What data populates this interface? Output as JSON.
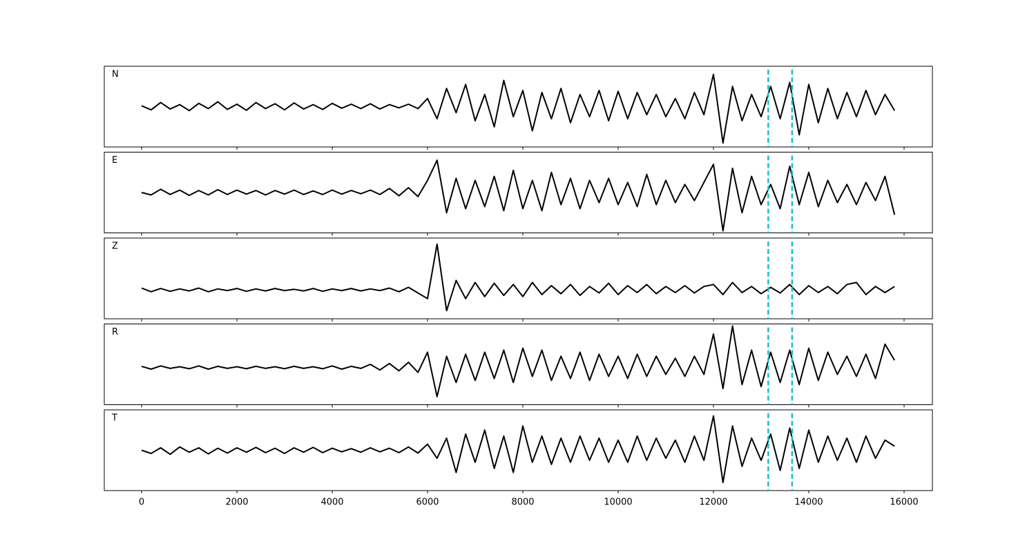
{
  "chart_data": {
    "type": "line",
    "layout": "stacked",
    "x": [
      0,
      200,
      400,
      600,
      800,
      1000,
      1200,
      1400,
      1600,
      1800,
      2000,
      2200,
      2400,
      2600,
      2800,
      3000,
      3200,
      3400,
      3600,
      3800,
      4000,
      4200,
      4400,
      4600,
      4800,
      5000,
      5200,
      5400,
      5600,
      5800,
      6000,
      6200,
      6400,
      6600,
      6800,
      7000,
      7200,
      7400,
      7600,
      7800,
      8000,
      8200,
      8400,
      8600,
      8800,
      9000,
      9200,
      9400,
      9600,
      9800,
      10000,
      10200,
      10400,
      10600,
      10800,
      11000,
      11200,
      11400,
      11600,
      11800,
      12000,
      12200,
      12400,
      12600,
      12800,
      13000,
      13200,
      13400,
      13600,
      13800,
      14000,
      14200,
      14400,
      14600,
      14800,
      15000,
      15200,
      15400,
      15600,
      15800
    ],
    "series": [
      {
        "name": "N",
        "color": "#000000",
        "values": [
          0.02,
          -0.08,
          0.1,
          -0.06,
          0.05,
          -0.1,
          0.08,
          -0.05,
          0.12,
          -0.07,
          0.06,
          -0.09,
          0.1,
          -0.05,
          0.07,
          -0.08,
          0.09,
          -0.06,
          0.05,
          -0.07,
          0.08,
          -0.04,
          0.06,
          -0.05,
          0.07,
          -0.06,
          0.05,
          -0.03,
          0.06,
          -0.05,
          0.2,
          -0.3,
          0.45,
          -0.15,
          0.55,
          -0.35,
          0.3,
          -0.5,
          0.65,
          -0.25,
          0.4,
          -0.6,
          0.35,
          -0.3,
          0.45,
          -0.4,
          0.3,
          -0.25,
          0.4,
          -0.35,
          0.38,
          -0.3,
          0.35,
          -0.2,
          0.3,
          -0.25,
          0.2,
          -0.3,
          0.35,
          -0.2,
          0.8,
          -0.9,
          0.5,
          -0.35,
          0.3,
          -0.25,
          0.5,
          -0.3,
          0.6,
          -0.7,
          0.55,
          -0.4,
          0.45,
          -0.3,
          0.35,
          -0.25,
          0.4,
          -0.2,
          0.3,
          -0.1
        ]
      },
      {
        "name": "E",
        "color": "#000000",
        "values": [
          0.0,
          -0.06,
          0.08,
          -0.05,
          0.06,
          -0.07,
          0.05,
          -0.06,
          0.07,
          -0.05,
          0.06,
          -0.04,
          0.05,
          -0.06,
          0.05,
          -0.04,
          0.06,
          -0.05,
          0.04,
          -0.05,
          0.06,
          -0.04,
          0.05,
          -0.03,
          0.06,
          -0.05,
          0.1,
          -0.08,
          0.12,
          -0.1,
          0.3,
          0.8,
          -0.5,
          0.35,
          -0.4,
          0.3,
          -0.35,
          0.4,
          -0.45,
          0.55,
          -0.4,
          0.3,
          -0.45,
          0.5,
          -0.3,
          0.35,
          -0.4,
          0.3,
          -0.25,
          0.35,
          -0.3,
          0.25,
          -0.35,
          0.45,
          -0.3,
          0.3,
          -0.25,
          0.2,
          -0.2,
          0.25,
          0.7,
          -0.95,
          0.6,
          -0.5,
          0.4,
          -0.3,
          0.2,
          -0.4,
          0.65,
          -0.3,
          0.5,
          -0.35,
          0.3,
          -0.25,
          0.2,
          -0.3,
          0.25,
          -0.2,
          0.4,
          -0.55
        ]
      },
      {
        "name": "Z",
        "color": "#000000",
        "values": [
          -0.24,
          -0.33,
          -0.25,
          -0.32,
          -0.26,
          -0.31,
          -0.24,
          -0.33,
          -0.26,
          -0.3,
          -0.25,
          -0.32,
          -0.26,
          -0.31,
          -0.25,
          -0.3,
          -0.27,
          -0.31,
          -0.25,
          -0.32,
          -0.26,
          -0.3,
          -0.25,
          -0.31,
          -0.26,
          -0.3,
          -0.24,
          -0.33,
          -0.22,
          -0.36,
          -0.5,
          0.85,
          -0.8,
          -0.05,
          -0.5,
          -0.1,
          -0.45,
          -0.12,
          -0.42,
          -0.15,
          -0.45,
          -0.1,
          -0.4,
          -0.18,
          -0.38,
          -0.15,
          -0.42,
          -0.2,
          -0.36,
          -0.12,
          -0.4,
          -0.18,
          -0.35,
          -0.15,
          -0.38,
          -0.2,
          -0.35,
          -0.18,
          -0.36,
          -0.2,
          -0.15,
          -0.4,
          -0.1,
          -0.35,
          -0.2,
          -0.38,
          -0.22,
          -0.36,
          -0.15,
          -0.4,
          -0.18,
          -0.35,
          -0.2,
          -0.38,
          -0.15,
          -0.1,
          -0.4,
          -0.2,
          -0.35,
          -0.2
        ]
      },
      {
        "name": "R",
        "color": "#000000",
        "values": [
          -0.05,
          -0.12,
          -0.04,
          -0.1,
          -0.06,
          -0.11,
          -0.04,
          -0.12,
          -0.05,
          -0.1,
          -0.06,
          -0.11,
          -0.05,
          -0.1,
          -0.06,
          -0.11,
          -0.05,
          -0.1,
          -0.06,
          -0.11,
          -0.04,
          -0.12,
          -0.05,
          -0.1,
          0.0,
          -0.14,
          0.02,
          -0.16,
          0.05,
          -0.2,
          0.3,
          -0.8,
          0.2,
          -0.45,
          0.25,
          -0.4,
          0.3,
          -0.35,
          0.35,
          -0.45,
          0.4,
          -0.3,
          0.35,
          -0.4,
          0.2,
          -0.35,
          0.3,
          -0.4,
          0.25,
          -0.3,
          0.2,
          -0.35,
          0.25,
          -0.3,
          0.2,
          -0.25,
          0.15,
          -0.3,
          0.2,
          -0.25,
          0.75,
          -0.6,
          0.95,
          -0.5,
          0.35,
          -0.55,
          0.3,
          -0.45,
          0.35,
          -0.5,
          0.4,
          -0.4,
          0.3,
          -0.25,
          0.2,
          -0.3,
          0.25,
          -0.35,
          0.5,
          0.1
        ]
      },
      {
        "name": "T",
        "color": "#000000",
        "values": [
          0.0,
          -0.08,
          0.06,
          -0.1,
          0.08,
          -0.05,
          0.06,
          -0.09,
          0.05,
          -0.07,
          0.06,
          -0.05,
          0.07,
          -0.06,
          0.05,
          -0.08,
          0.06,
          -0.05,
          0.07,
          -0.06,
          0.05,
          -0.04,
          0.04,
          -0.05,
          0.06,
          -0.04,
          0.05,
          -0.06,
          0.08,
          -0.07,
          0.15,
          -0.2,
          0.3,
          -0.55,
          0.4,
          -0.3,
          0.5,
          -0.45,
          0.35,
          -0.55,
          0.6,
          -0.3,
          0.35,
          -0.35,
          0.3,
          -0.3,
          0.35,
          -0.25,
          0.3,
          -0.3,
          0.25,
          -0.3,
          0.35,
          -0.25,
          0.3,
          -0.2,
          0.25,
          -0.3,
          0.35,
          -0.25,
          0.85,
          -0.8,
          0.6,
          -0.4,
          0.3,
          -0.25,
          0.4,
          -0.5,
          0.55,
          -0.45,
          0.5,
          -0.3,
          0.35,
          -0.25,
          0.3,
          -0.3,
          0.35,
          -0.2,
          0.25,
          0.1
        ]
      }
    ],
    "xlim": [
      -783,
      16594
    ],
    "ylim": [
      -1,
      1
    ],
    "xticks": [
      0,
      2000,
      4000,
      6000,
      8000,
      10000,
      12000,
      14000,
      16000
    ],
    "vlines": {
      "x": [
        13150,
        13650
      ],
      "color": "#17becf"
    }
  }
}
